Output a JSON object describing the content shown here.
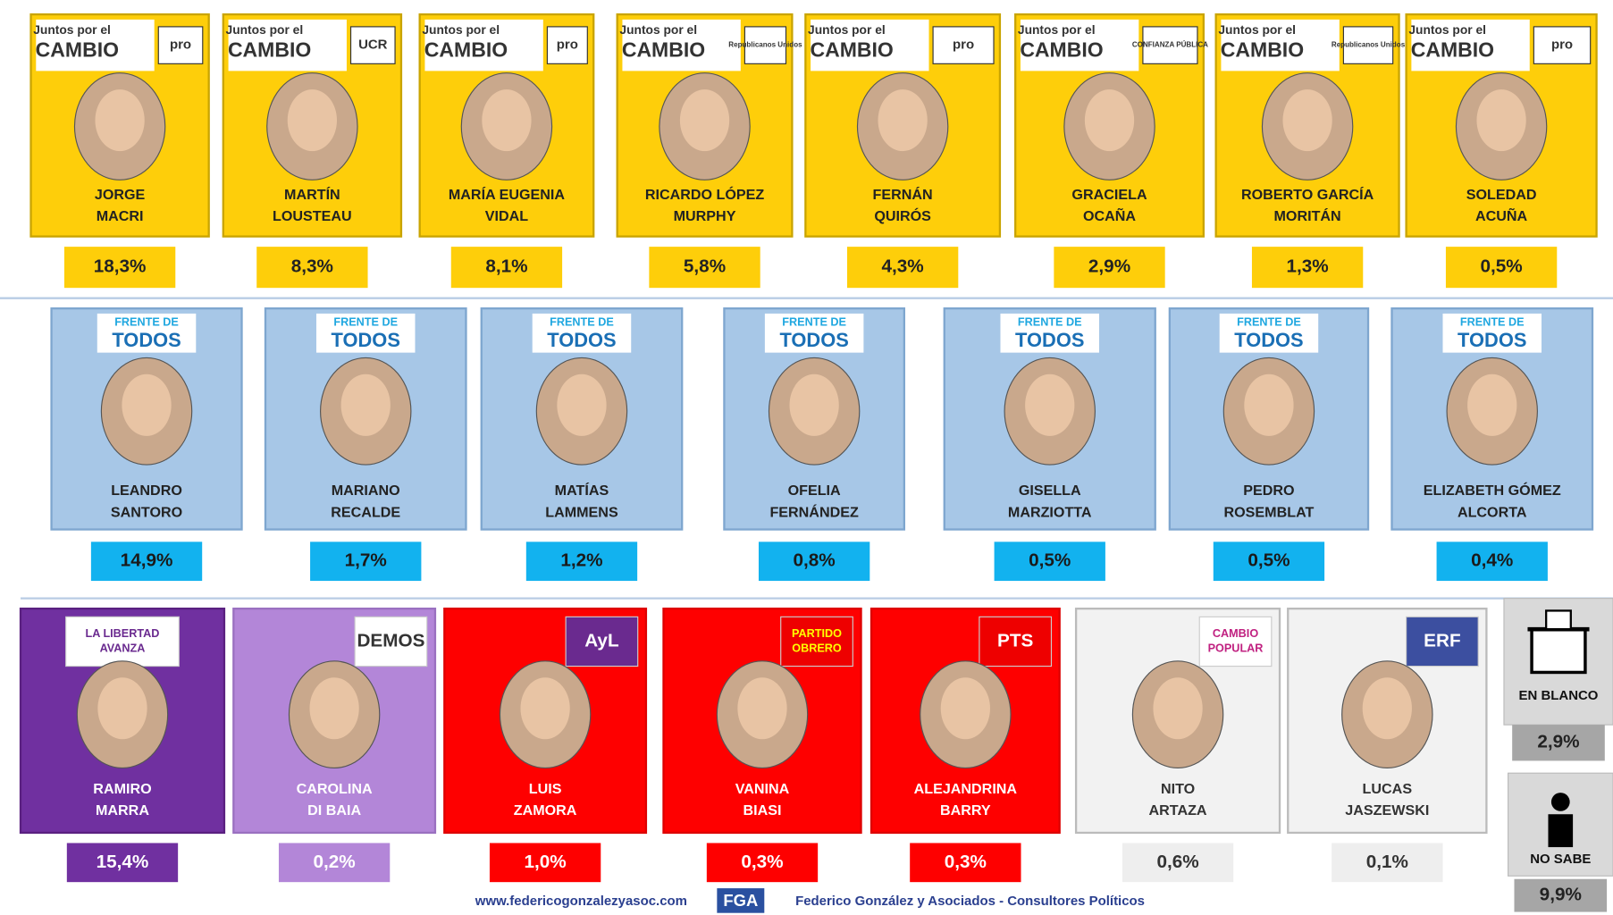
{
  "rows": [
    {
      "candidates": [
        {
          "logo": [
            "Juntos por el",
            "CAMBIO",
            "pro"
          ],
          "name": [
            "JORGE",
            "MACRI"
          ],
          "value": "18,3%"
        },
        {
          "logo": [
            "Juntos por el",
            "CAMBIO",
            "UCR"
          ],
          "name": [
            "MARTÍN",
            "LOUSTEAU"
          ],
          "value": "8,3%"
        },
        {
          "logo": [
            "Juntos por el",
            "CAMBIO",
            "pro"
          ],
          "name": [
            "MARÍA EUGENIA",
            "VIDAL"
          ],
          "value": "8,1%"
        },
        {
          "logo": [
            "Juntos por el",
            "CAMBIO",
            "Republicanos Unidos"
          ],
          "name": [
            "RICARDO LÓPEZ",
            "MURPHY"
          ],
          "value": "5,8%"
        },
        {
          "logo": [
            "Juntos por el",
            "CAMBIO",
            "pro"
          ],
          "name": [
            "FERNÁN",
            "QUIRÓS"
          ],
          "value": "4,3%"
        },
        {
          "logo": [
            "Juntos por el",
            "CAMBIO",
            "CONFIANZA PÚBLICA"
          ],
          "name": [
            "GRACIELA",
            "OCAÑA"
          ],
          "value": "2,9%"
        },
        {
          "logo": [
            "Juntos por el",
            "CAMBIO",
            "Republicanos Unidos"
          ],
          "name": [
            "ROBERTO GARCÍA",
            "MORITÁN"
          ],
          "value": "1,3%"
        },
        {
          "logo": [
            "Juntos por el",
            "CAMBIO",
            "pro"
          ],
          "name": [
            "SOLEDAD",
            "ACUÑA"
          ],
          "value": "0,5%"
        }
      ]
    },
    {
      "candidates": [
        {
          "logo": [
            "FRENTE DE",
            "TODOS"
          ],
          "name": [
            "LEANDRO",
            "SANTORO"
          ],
          "value": "14,9%"
        },
        {
          "logo": [
            "FRENTE DE",
            "TODOS"
          ],
          "name": [
            "MARIANO",
            "RECALDE"
          ],
          "value": "1,7%"
        },
        {
          "logo": [
            "FRENTE DE",
            "TODOS"
          ],
          "name": [
            "MATÍAS",
            "LAMMENS"
          ],
          "value": "1,2%"
        },
        {
          "logo": [
            "FRENTE DE",
            "TODOS"
          ],
          "name": [
            "OFELIA",
            "FERNÁNDEZ"
          ],
          "value": "0,8%"
        },
        {
          "logo": [
            "FRENTE DE",
            "TODOS"
          ],
          "name": [
            "GISELLA",
            "MARZIOTTA"
          ],
          "value": "0,5%"
        },
        {
          "logo": [
            "FRENTE DE",
            "TODOS"
          ],
          "name": [
            "PEDRO",
            "ROSEMBLAT"
          ],
          "value": "0,5%"
        },
        {
          "logo": [
            "FRENTE DE",
            "TODOS"
          ],
          "name": [
            "ELIZABETH GÓMEZ",
            "ALCORTA"
          ],
          "value": "0,4%"
        }
      ]
    },
    {
      "candidates": [
        {
          "logo": [
            "LA LIBERTAD",
            "AVANZA"
          ],
          "name": [
            "RAMIRO",
            "MARRA"
          ],
          "value": "15,4%"
        },
        {
          "logo": [
            "DEMOS"
          ],
          "name": [
            "CAROLINA",
            "DI BAIA"
          ],
          "value": "0,2%"
        },
        {
          "logo": [
            "AyL"
          ],
          "name": [
            "LUIS",
            "ZAMORA"
          ],
          "value": "1,0%"
        },
        {
          "logo": [
            "PARTIDO",
            "OBRERO"
          ],
          "name": [
            "VANINA",
            "BIASI"
          ],
          "value": "0,3%"
        },
        {
          "logo": [
            "PTS"
          ],
          "name": [
            "ALEJANDRINA",
            "BARRY"
          ],
          "value": "0,3%"
        },
        {
          "logo": [
            "CAMBIO",
            "POPULAR"
          ],
          "name": [
            "NITO",
            "ARTAZA"
          ],
          "value": "0,6%"
        },
        {
          "logo": [
            "ERF"
          ],
          "name": [
            "LUCAS",
            "JASZEWSKI"
          ],
          "value": "0,1%"
        }
      ]
    }
  ],
  "extras": [
    {
      "label": "EN BLANCO",
      "value": "2,9%"
    },
    {
      "label": "NO SABE",
      "value": "9,9%"
    }
  ],
  "footer": {
    "url": "www.federicogonzalezyasoc.com",
    "brand": "FGA",
    "company": "Federico González y Asociados - Consultores Políticos"
  }
}
